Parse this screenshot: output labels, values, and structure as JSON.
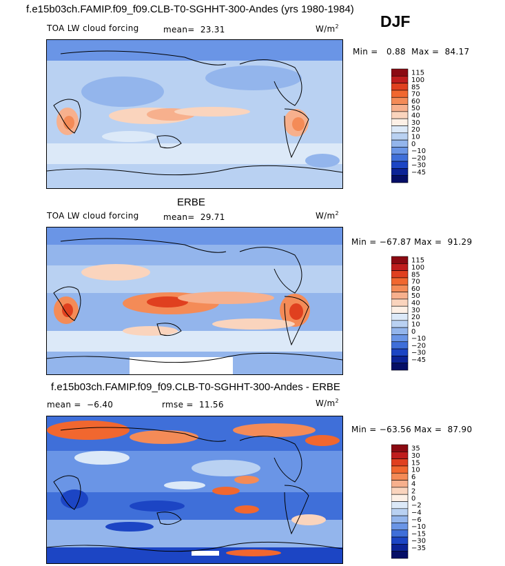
{
  "season": "DJF",
  "panel1": {
    "title": "f.e15b03ch.FAMIP.f09_f09.CLB-T0-SGHHT-300-Andes (yrs 1980-1984)",
    "left_label": "TOA LW cloud forcing",
    "mean_label": "mean=",
    "mean_value": "23.31",
    "units_base": "W/m",
    "units_exp": "2",
    "min_label": "Min =",
    "min_value": "0.88",
    "max_label": "Max =",
    "max_value": "84.17",
    "colorbar_ticks": [
      "115",
      "100",
      "85",
      "70",
      "60",
      "50",
      "40",
      "30",
      "20",
      "10",
      "0",
      "−10",
      "−20",
      "−30",
      "−45"
    ],
    "colorbar_colors": [
      "#8b0a12",
      "#bf1d1d",
      "#e0401f",
      "#f1672f",
      "#f48b57",
      "#f7b08d",
      "#fad4bd",
      "#fdf0e6",
      "#dce9f8",
      "#b9d1f2",
      "#93b5ec",
      "#6a95e6",
      "#3f6fd9",
      "#1c45c4",
      "#0c2396",
      "#050e66"
    ]
  },
  "panel2": {
    "title": "ERBE",
    "left_label": "TOA LW cloud forcing",
    "mean_label": "mean=",
    "mean_value": "29.71",
    "units_base": "W/m",
    "units_exp": "2",
    "min_label": "Min =",
    "min_value": "−67.87",
    "max_label": "Max =",
    "max_value": "91.29",
    "colorbar_ticks": [
      "115",
      "100",
      "85",
      "70",
      "60",
      "50",
      "40",
      "30",
      "20",
      "10",
      "0",
      "−10",
      "−20",
      "−30",
      "−45"
    ],
    "colorbar_colors": [
      "#8b0a12",
      "#bf1d1d",
      "#e0401f",
      "#f1672f",
      "#f48b57",
      "#f7b08d",
      "#fad4bd",
      "#fdf0e6",
      "#dce9f8",
      "#b9d1f2",
      "#93b5ec",
      "#6a95e6",
      "#3f6fd9",
      "#1c45c4",
      "#0c2396",
      "#050e66"
    ]
  },
  "panel3": {
    "title": "f.e15b03ch.FAMIP.f09_f09.CLB-T0-SGHHT-300-Andes - ERBE",
    "mean_label": "mean =",
    "mean_value": "−6.40",
    "rmse_label": "rmse =",
    "rmse_value": "11.56",
    "units_base": "W/m",
    "units_exp": "2",
    "min_label": "Min =",
    "min_value": "−63.56",
    "max_label": "Max =",
    "max_value": "87.90",
    "colorbar_ticks": [
      "35",
      "30",
      "15",
      "10",
      "6",
      "4",
      "2",
      "0",
      "−2",
      "−4",
      "−6",
      "−10",
      "−15",
      "−30",
      "−35"
    ],
    "colorbar_colors": [
      "#8b0a12",
      "#bf1d1d",
      "#e0401f",
      "#f1672f",
      "#f48b57",
      "#f7b08d",
      "#fad4bd",
      "#fdf0e6",
      "#dce9f8",
      "#b9d1f2",
      "#93b5ec",
      "#6a95e6",
      "#3f6fd9",
      "#1c45c4",
      "#0c2396",
      "#050e66"
    ]
  },
  "chart_data": [
    {
      "type": "heatmap",
      "title": "f.e15b03ch.FAMIP.f09_f09.CLB-T0-SGHHT-300-Andes (yrs 1980-1984)",
      "variable": "TOA LW cloud forcing",
      "units": "W/m2",
      "mean": 23.31,
      "min": 0.88,
      "max": 84.17,
      "contour_levels": [
        -45,
        -30,
        -20,
        -10,
        0,
        10,
        20,
        30,
        40,
        50,
        60,
        70,
        85,
        100,
        115
      ]
    },
    {
      "type": "heatmap",
      "title": "ERBE",
      "variable": "TOA LW cloud forcing",
      "units": "W/m2",
      "mean": 29.71,
      "min": -67.87,
      "max": 91.29,
      "contour_levels": [
        -45,
        -30,
        -20,
        -10,
        0,
        10,
        20,
        30,
        40,
        50,
        60,
        70,
        85,
        100,
        115
      ]
    },
    {
      "type": "heatmap",
      "title": "f.e15b03ch.FAMIP.f09_f09.CLB-T0-SGHHT-300-Andes - ERBE",
      "units": "W/m2",
      "mean": -6.4,
      "rmse": 11.56,
      "min": -63.56,
      "max": 87.9,
      "contour_levels": [
        -35,
        -30,
        -15,
        -10,
        -6,
        -4,
        -2,
        0,
        2,
        4,
        6,
        10,
        15,
        30,
        35
      ]
    }
  ]
}
